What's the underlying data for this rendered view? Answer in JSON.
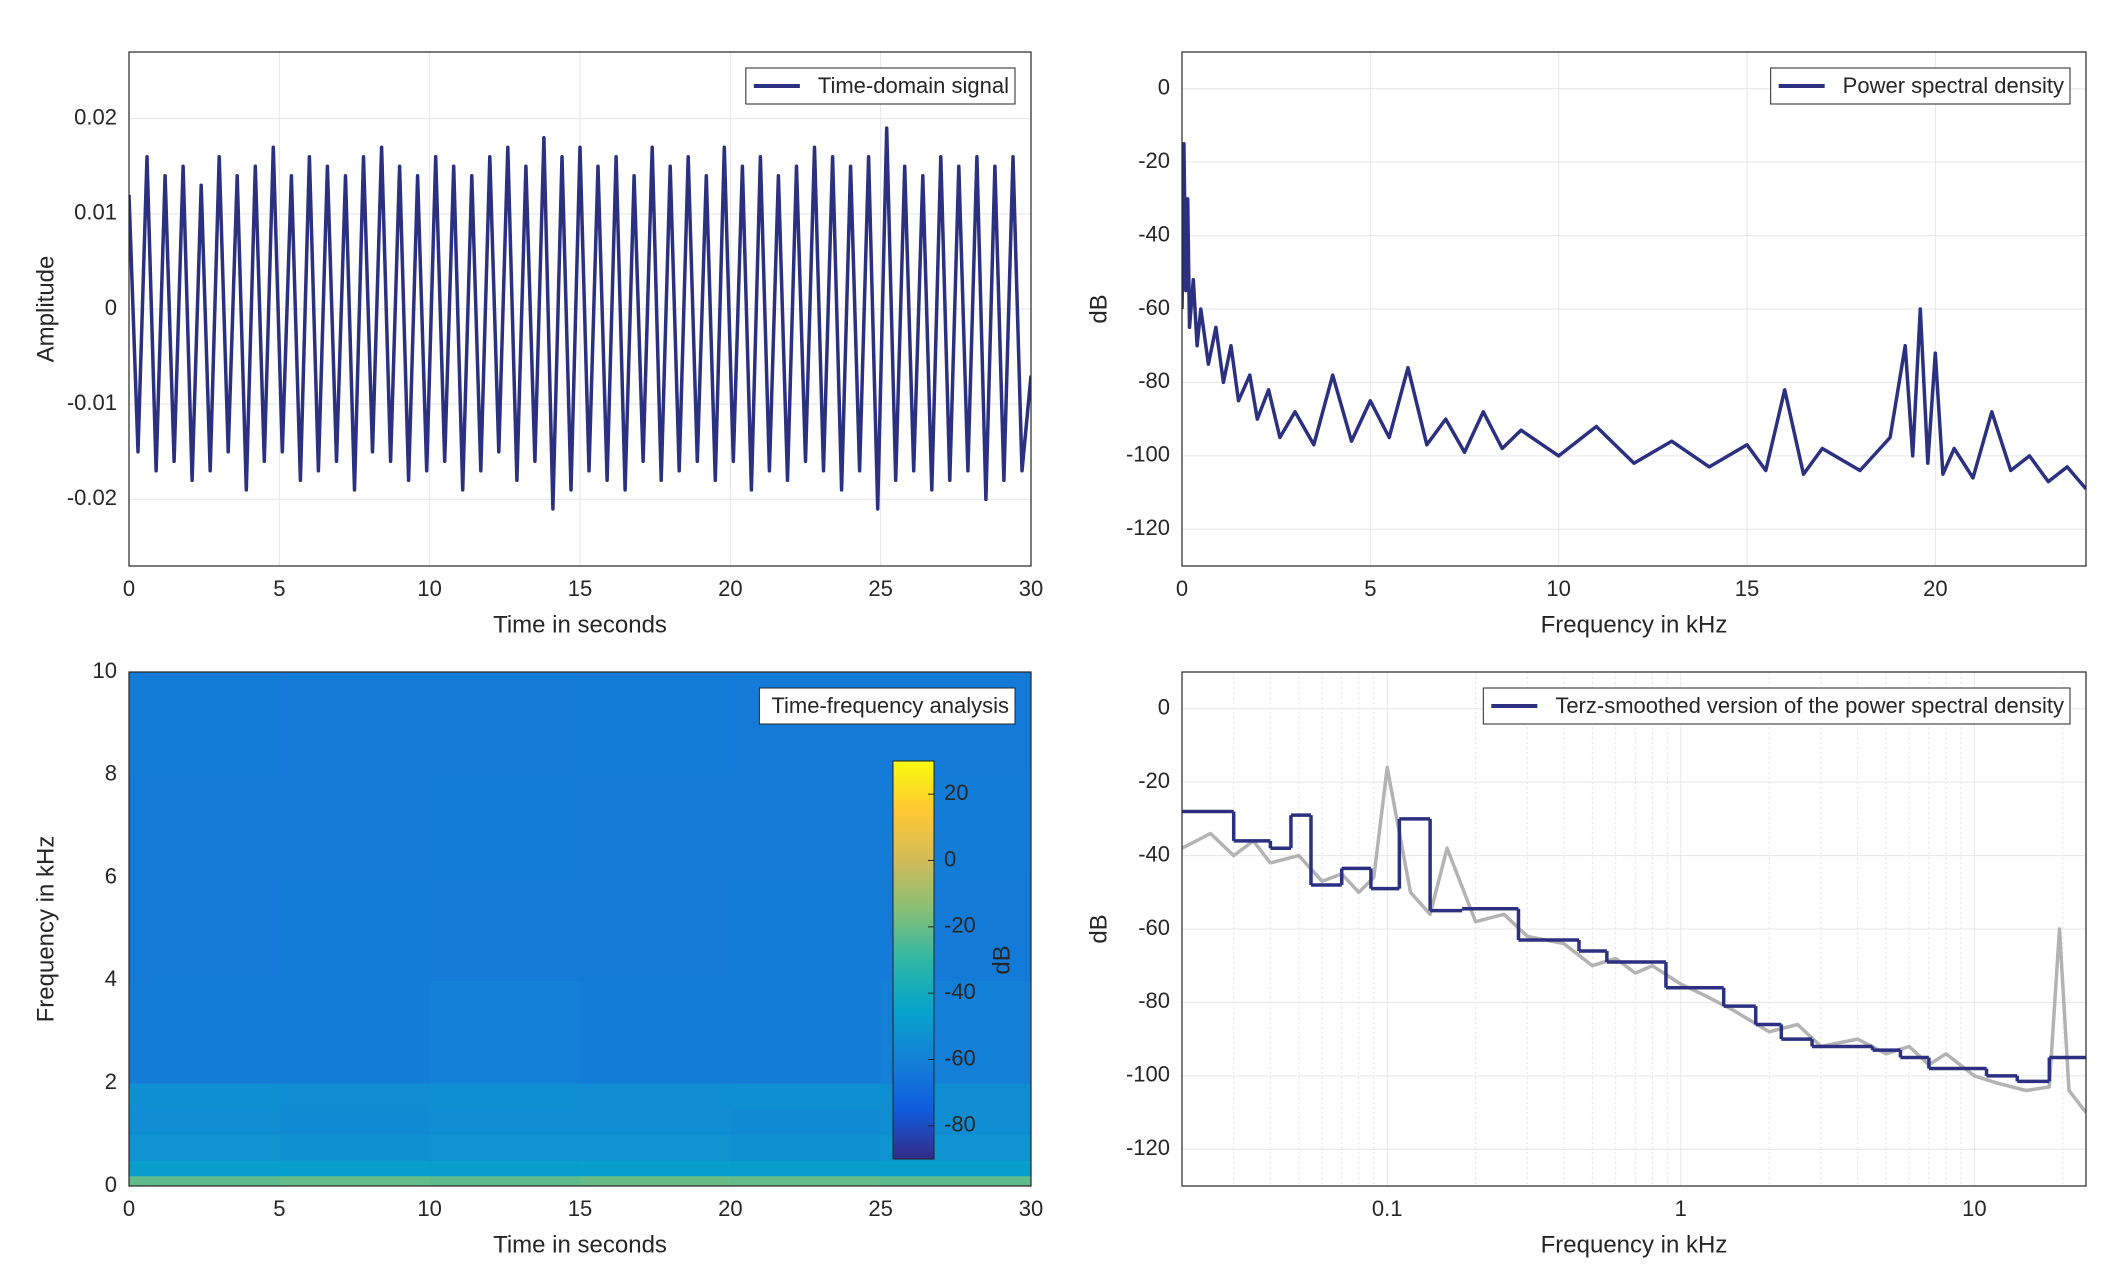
{
  "chart_data": [
    {
      "type": "line",
      "xlabel": "Time in seconds",
      "ylabel": "Amplitude",
      "x": [
        0,
        0.3,
        0.6,
        0.9,
        1.2,
        1.5,
        1.8,
        2.1,
        2.4,
        2.7,
        3,
        3.3,
        3.6,
        3.9,
        4.2,
        4.5,
        4.8,
        5.1,
        5.4,
        5.7,
        6,
        6.3,
        6.6,
        6.9,
        7.2,
        7.5,
        7.8,
        8.1,
        8.4,
        8.7,
        9,
        9.3,
        9.6,
        9.9,
        10.2,
        10.5,
        10.8,
        11.1,
        11.4,
        11.7,
        12,
        12.3,
        12.6,
        12.9,
        13.2,
        13.5,
        13.8,
        14.1,
        14.4,
        14.7,
        15,
        15.3,
        15.6,
        15.9,
        16.2,
        16.5,
        16.8,
        17.1,
        17.4,
        17.7,
        18,
        18.3,
        18.6,
        18.9,
        19.2,
        19.5,
        19.8,
        20.1,
        20.4,
        20.7,
        21,
        21.3,
        21.6,
        21.9,
        22.2,
        22.5,
        22.8,
        23.1,
        23.4,
        23.7,
        24,
        24.3,
        24.6,
        24.9,
        25.2,
        25.5,
        25.8,
        26.1,
        26.4,
        26.7,
        27,
        27.3,
        27.6,
        27.9,
        28.2,
        28.5,
        28.8,
        29.1,
        29.4,
        29.7,
        30
      ],
      "series": [
        {
          "name": "Time-domain signal",
          "color": "#2b3080",
          "values": [
            0.012,
            -0.015,
            0.016,
            -0.017,
            0.014,
            -0.016,
            0.015,
            -0.018,
            0.013,
            -0.017,
            0.016,
            -0.015,
            0.014,
            -0.019,
            0.015,
            -0.016,
            0.017,
            -0.015,
            0.014,
            -0.018,
            0.016,
            -0.017,
            0.015,
            -0.016,
            0.014,
            -0.019,
            0.016,
            -0.015,
            0.017,
            -0.016,
            0.015,
            -0.018,
            0.014,
            -0.017,
            0.016,
            -0.016,
            0.015,
            -0.019,
            0.014,
            -0.017,
            0.016,
            -0.015,
            0.017,
            -0.018,
            0.015,
            -0.016,
            0.018,
            -0.021,
            0.016,
            -0.019,
            0.017,
            -0.017,
            0.015,
            -0.018,
            0.016,
            -0.019,
            0.014,
            -0.016,
            0.017,
            -0.018,
            0.015,
            -0.017,
            0.016,
            -0.016,
            0.014,
            -0.018,
            0.017,
            -0.016,
            0.015,
            -0.019,
            0.016,
            -0.017,
            0.014,
            -0.018,
            0.015,
            -0.016,
            0.017,
            -0.017,
            0.016,
            -0.019,
            0.015,
            -0.017,
            0.016,
            -0.021,
            0.019,
            -0.018,
            0.015,
            -0.017,
            0.014,
            -0.019,
            0.016,
            -0.018,
            0.015,
            -0.017,
            0.016,
            -0.02,
            0.015,
            -0.018,
            0.016,
            -0.017,
            -0.007
          ]
        }
      ],
      "xlim": [
        0,
        30
      ],
      "ylim": [
        -0.027,
        0.027
      ],
      "xticks": [
        0,
        5,
        10,
        15,
        20,
        25,
        30
      ],
      "yticks": [
        -0.02,
        -0.01,
        0,
        0.01,
        0.02
      ],
      "grid": true,
      "legend": "upper right"
    },
    {
      "type": "line",
      "xlabel": "Frequency in kHz",
      "ylabel": "dB",
      "x": [
        0,
        0.05,
        0.1,
        0.15,
        0.2,
        0.3,
        0.4,
        0.5,
        0.7,
        0.9,
        1.1,
        1.3,
        1.5,
        1.8,
        2,
        2.3,
        2.6,
        3,
        3.5,
        4,
        4.5,
        5,
        5.5,
        6,
        6.5,
        7,
        7.5,
        8,
        8.5,
        9,
        10,
        11,
        12,
        13,
        14,
        15,
        15.5,
        16,
        16.5,
        17,
        18,
        18.8,
        19.2,
        19.4,
        19.6,
        19.8,
        20,
        20.2,
        20.5,
        21,
        21.5,
        22,
        22.5,
        23,
        23.5,
        24
      ],
      "series": [
        {
          "name": "Power spectral density",
          "color": "#2b3080",
          "values": [
            -60,
            -15,
            -55,
            -30,
            -65,
            -52,
            -70,
            -60,
            -75,
            -65,
            -80,
            -70,
            -85,
            -78,
            -90,
            -82,
            -95,
            -88,
            -97,
            -78,
            -96,
            -85,
            -95,
            -76,
            -97,
            -90,
            -99,
            -88,
            -98,
            -93,
            -100,
            -92,
            -102,
            -96,
            -103,
            -97,
            -104,
            -82,
            -105,
            -98,
            -104,
            -95,
            -70,
            -100,
            -60,
            -102,
            -72,
            -105,
            -98,
            -106,
            -88,
            -104,
            -100,
            -107,
            -103,
            -109
          ]
        }
      ],
      "xlim": [
        0,
        24
      ],
      "ylim": [
        -130,
        10
      ],
      "xticks": [
        0,
        5,
        10,
        15,
        20
      ],
      "yticks": [
        -120,
        -100,
        -80,
        -60,
        -40,
        -20,
        0
      ],
      "grid": true,
      "legend": "upper right"
    },
    {
      "type": "heatmap",
      "xlabel": "Time in seconds",
      "ylabel": "Frequency in kHz",
      "legend_text": "Time-frequency analysis",
      "x": [
        0,
        5,
        10,
        15,
        20,
        25,
        30
      ],
      "y": [
        0,
        0.2,
        0.5,
        1,
        1.5,
        2,
        4,
        6,
        8,
        10
      ],
      "z": [
        [
          -22,
          -21,
          -22,
          -20,
          -21,
          -22
        ],
        [
          -48,
          -47,
          -48,
          -47,
          -48,
          -47
        ],
        [
          -52,
          -53,
          -52,
          -52,
          -53,
          -52
        ],
        [
          -55,
          -56,
          -55,
          -55,
          -56,
          -55
        ],
        [
          -54,
          -55,
          -54,
          -55,
          -54,
          -55
        ],
        [
          -62,
          -62,
          -61,
          -62,
          -62,
          -61
        ],
        [
          -63,
          -62,
          -63,
          -63,
          -62,
          -63
        ],
        [
          -63,
          -63,
          -62,
          -63,
          -63,
          -62
        ],
        [
          -62,
          -63,
          -63,
          -62,
          -63,
          -63
        ]
      ],
      "xlim": [
        0,
        30
      ],
      "ylim": [
        0,
        10
      ],
      "xticks": [
        0,
        5,
        10,
        15,
        20,
        25,
        30
      ],
      "yticks": [
        0,
        2,
        4,
        6,
        8,
        10
      ],
      "clim": [
        -90,
        30
      ],
      "cticks": [
        -80,
        -60,
        -40,
        -20,
        0,
        20
      ],
      "clabel": "dB",
      "colormap": [
        "#352a87",
        "#0f5cdd",
        "#1481d6",
        "#06a4ca",
        "#2eb7a4",
        "#87bf77",
        "#d1bb59",
        "#fec832",
        "#f9fb0e"
      ]
    },
    {
      "type": "line",
      "xlabel": "Frequency in kHz",
      "ylabel": "dB",
      "xscale": "log",
      "series": [
        {
          "color": "#b3b3b3",
          "x": [
            0.02,
            0.025,
            0.03,
            0.035,
            0.04,
            0.05,
            0.06,
            0.07,
            0.08,
            0.09,
            0.1,
            0.12,
            0.14,
            0.16,
            0.2,
            0.25,
            0.3,
            0.4,
            0.5,
            0.6,
            0.7,
            0.8,
            1,
            1.2,
            1.5,
            2,
            2.5,
            3,
            4,
            5,
            6,
            7,
            8,
            10,
            12,
            15,
            18,
            19.5,
            21,
            24
          ],
          "values": [
            -38,
            -34,
            -40,
            -36,
            -42,
            -40,
            -47,
            -45,
            -50,
            -46,
            -16,
            -50,
            -56,
            -38,
            -58,
            -56,
            -62,
            -64,
            -70,
            -68,
            -72,
            -70,
            -75,
            -78,
            -82,
            -88,
            -86,
            -92,
            -90,
            -94,
            -92,
            -97,
            -94,
            -100,
            -102,
            -104,
            -103,
            -60,
            -104,
            -110
          ]
        },
        {
          "name": "Terz-smoothed version of the power spectral density",
          "color": "#2b3080",
          "drawstyle": "steps-post",
          "x": [
            0.02,
            0.03,
            0.04,
            0.047,
            0.055,
            0.07,
            0.088,
            0.11,
            0.14,
            0.18,
            0.28,
            0.45,
            0.56,
            0.89,
            1.4,
            1.8,
            2.2,
            2.8,
            4.5,
            5.6,
            7,
            11,
            14,
            18
          ],
          "values": [
            -28,
            -36,
            -38,
            -29,
            -48,
            -43.5,
            -49,
            -30,
            -55,
            -54.5,
            -63,
            -66,
            -69,
            -76,
            -81,
            -86,
            -90,
            -92,
            -93,
            -95,
            -98,
            -100,
            -101.5,
            -95
          ]
        }
      ],
      "xlim": [
        0.02,
        24
      ],
      "ylim": [
        -130,
        10
      ],
      "xticks": [
        0.1,
        1,
        10
      ],
      "yticks": [
        -120,
        -100,
        -80,
        -60,
        -40,
        -20,
        0
      ],
      "grid": true,
      "legend": "upper right"
    }
  ]
}
